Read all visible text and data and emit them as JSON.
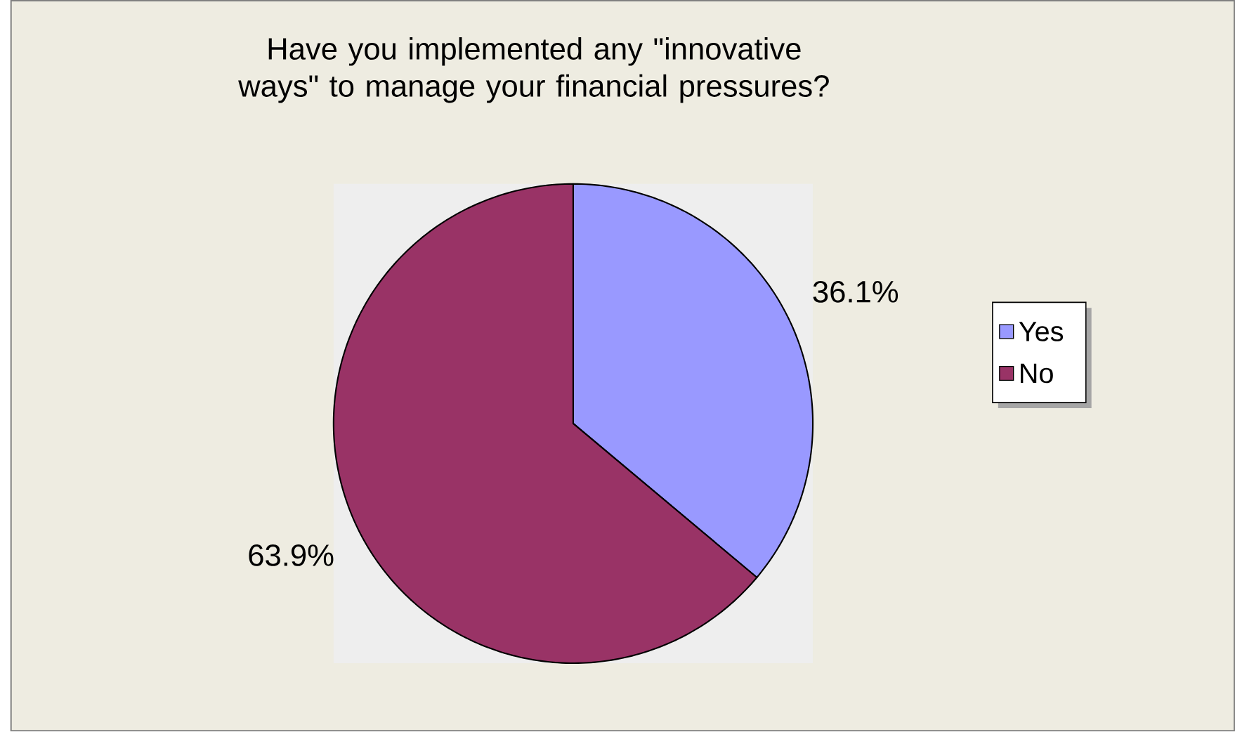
{
  "chart_data": {
    "type": "pie",
    "title": "Have you implemented any \"innovative ways\" to manage your financial pressures?",
    "categories": [
      "Yes",
      "No"
    ],
    "values": [
      36.1,
      63.9
    ],
    "value_labels": [
      "36.1%",
      "63.9%"
    ],
    "colors": [
      "#9999ff",
      "#993366"
    ],
    "legend": "right"
  }
}
